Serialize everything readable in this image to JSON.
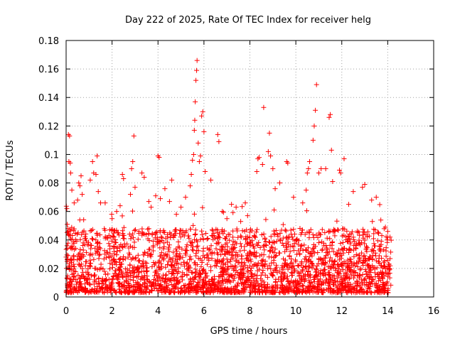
{
  "chart_data": {
    "type": "scatter",
    "title": "Day 222 of 2025, Rate Of TEC Index for receiver helg",
    "xlabel": "GPS time / hours",
    "ylabel": "ROTI / TECUs",
    "xlim": [
      0,
      16
    ],
    "ylim": [
      0,
      0.18
    ],
    "x_ticks": [
      "0",
      "2",
      "4",
      "6",
      "8",
      "10",
      "12",
      "14",
      "16"
    ],
    "y_ticks": [
      "0",
      "0.02",
      "0.04",
      "0.06",
      "0.08",
      "0.1",
      "0.12",
      "0.14",
      "0.16",
      "0.18"
    ],
    "grid": true,
    "marker": "+",
    "marker_color": "#ff0000",
    "x_data_range": [
      0,
      14.15
    ],
    "series": [
      {
        "points": [
          [
            0.03,
            0.062
          ],
          [
            0.05,
            0.051
          ],
          [
            0.08,
            0.048
          ],
          [
            0.1,
            0.114
          ],
          [
            0.15,
            0.113
          ],
          [
            0.12,
            0.095
          ],
          [
            0.18,
            0.094
          ],
          [
            0.2,
            0.087
          ],
          [
            0.25,
            0.075
          ],
          [
            0.35,
            0.066
          ],
          [
            0.5,
            0.068
          ],
          [
            0.55,
            0.08
          ],
          [
            0.6,
            0.078
          ],
          [
            0.65,
            0.085
          ],
          [
            0.7,
            0.072
          ],
          [
            1.05,
            0.082
          ],
          [
            1.15,
            0.095
          ],
          [
            1.2,
            0.087
          ],
          [
            1.3,
            0.086
          ],
          [
            1.35,
            0.099
          ],
          [
            1.4,
            0.074
          ],
          [
            1.5,
            0.066
          ],
          [
            1.7,
            0.066
          ],
          [
            2.0,
            0.055
          ],
          [
            2.2,
            0.06
          ],
          [
            2.35,
            0.064
          ],
          [
            2.45,
            0.086
          ],
          [
            2.5,
            0.083
          ],
          [
            2.8,
            0.072
          ],
          [
            2.85,
            0.09
          ],
          [
            2.9,
            0.095
          ],
          [
            2.95,
            0.113
          ],
          [
            3.0,
            0.077
          ],
          [
            3.3,
            0.087
          ],
          [
            3.4,
            0.084
          ],
          [
            3.6,
            0.067
          ],
          [
            3.7,
            0.063
          ],
          [
            3.9,
            0.071
          ],
          [
            4.0,
            0.099
          ],
          [
            4.05,
            0.098
          ],
          [
            4.1,
            0.069
          ],
          [
            4.3,
            0.076
          ],
          [
            4.5,
            0.067
          ],
          [
            4.6,
            0.082
          ],
          [
            4.8,
            0.058
          ],
          [
            5.0,
            0.063
          ],
          [
            5.2,
            0.07
          ],
          [
            5.4,
            0.078
          ],
          [
            5.45,
            0.086
          ],
          [
            5.5,
            0.096
          ],
          [
            5.55,
            0.1
          ],
          [
            5.58,
            0.117
          ],
          [
            5.6,
            0.124
          ],
          [
            5.62,
            0.137
          ],
          [
            5.65,
            0.152
          ],
          [
            5.68,
            0.159
          ],
          [
            5.7,
            0.166
          ],
          [
            5.75,
            0.108
          ],
          [
            5.8,
            0.095
          ],
          [
            5.85,
            0.099
          ],
          [
            5.9,
            0.127
          ],
          [
            5.95,
            0.13
          ],
          [
            6.0,
            0.116
          ],
          [
            6.05,
            0.088
          ],
          [
            6.3,
            0.082
          ],
          [
            6.6,
            0.114
          ],
          [
            6.65,
            0.109
          ],
          [
            6.8,
            0.06
          ],
          [
            7.0,
            0.055
          ],
          [
            7.2,
            0.065
          ],
          [
            7.4,
            0.063
          ],
          [
            7.6,
            0.053
          ],
          [
            7.8,
            0.066
          ],
          [
            7.9,
            0.057
          ],
          [
            8.3,
            0.088
          ],
          [
            8.35,
            0.097
          ],
          [
            8.4,
            0.098
          ],
          [
            8.55,
            0.093
          ],
          [
            8.6,
            0.133
          ],
          [
            8.8,
            0.102
          ],
          [
            8.85,
            0.115
          ],
          [
            8.9,
            0.099
          ],
          [
            9.0,
            0.09
          ],
          [
            9.1,
            0.076
          ],
          [
            9.3,
            0.08
          ],
          [
            9.6,
            0.095
          ],
          [
            9.65,
            0.094
          ],
          [
            9.9,
            0.07
          ],
          [
            10.3,
            0.066
          ],
          [
            10.45,
            0.075
          ],
          [
            10.5,
            0.087
          ],
          [
            10.55,
            0.09
          ],
          [
            10.6,
            0.095
          ],
          [
            10.75,
            0.11
          ],
          [
            10.8,
            0.12
          ],
          [
            10.85,
            0.131
          ],
          [
            10.9,
            0.149
          ],
          [
            11.0,
            0.087
          ],
          [
            11.1,
            0.09
          ],
          [
            11.3,
            0.09
          ],
          [
            11.45,
            0.126
          ],
          [
            11.5,
            0.128
          ],
          [
            11.55,
            0.103
          ],
          [
            11.6,
            0.081
          ],
          [
            11.9,
            0.089
          ],
          [
            11.95,
            0.087
          ],
          [
            12.1,
            0.097
          ],
          [
            12.3,
            0.065
          ],
          [
            12.5,
            0.074
          ],
          [
            12.9,
            0.077
          ],
          [
            13.0,
            0.079
          ],
          [
            13.3,
            0.068
          ],
          [
            13.5,
            0.07
          ],
          [
            13.7,
            0.054
          ],
          [
            13.9,
            0.049
          ],
          [
            14.0,
            0.046
          ],
          [
            14.1,
            0.042
          ]
        ]
      }
    ]
  }
}
